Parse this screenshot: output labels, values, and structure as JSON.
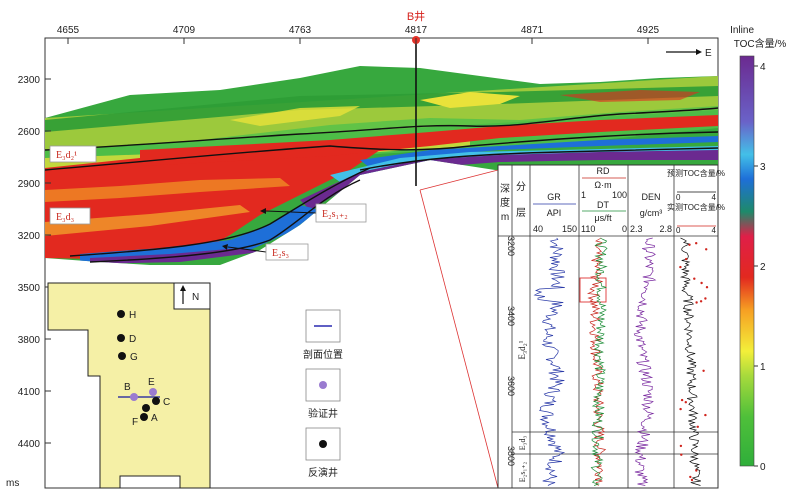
{
  "chart_data": {
    "type": "heatmap",
    "well_name": "B井",
    "inline_label": "Inline",
    "inline_ticks": [
      4655,
      4709,
      4763,
      4817,
      4871,
      4925
    ],
    "time_unit": "ms",
    "time_ticks": [
      2300,
      2600,
      2900,
      3200,
      3500,
      3800,
      4100,
      4400
    ],
    "east_label": "E",
    "colorbar": {
      "title": "TOC含量/%",
      "ticks": [
        0,
        1,
        2,
        3,
        4
      ],
      "colors": [
        "#2fae3a",
        "#62c83f",
        "#f3ef3a",
        "#f6a023",
        "#e2291f",
        "#e01f48",
        "#1e6fd8",
        "#43c0e8",
        "#6f2ea6",
        "#6b2a90"
      ]
    },
    "layer_labels": [
      {
        "id": "ed2-1",
        "text": "E₃d₂¹"
      },
      {
        "id": "ed3",
        "text": "E₃d₃"
      },
      {
        "id": "es12",
        "text": "E₂s₁₊₂"
      },
      {
        "id": "es3",
        "text": "E₂s₃"
      }
    ],
    "map": {
      "north_label": "N",
      "wells": [
        {
          "name": "H",
          "kind": "inversion"
        },
        {
          "name": "D",
          "kind": "inversion"
        },
        {
          "name": "G",
          "kind": "inversion"
        },
        {
          "name": "B",
          "kind": "validation"
        },
        {
          "name": "E",
          "kind": "validation"
        },
        {
          "name": "C",
          "kind": "inversion"
        },
        {
          "name": "A",
          "kind": "inversion"
        },
        {
          "name": "F",
          "kind": "inversion"
        }
      ]
    },
    "legend": [
      {
        "id": "section",
        "label": "剖面位置"
      },
      {
        "id": "verify",
        "label": "验证井"
      },
      {
        "id": "inverse",
        "label": "反演井"
      }
    ],
    "log_panel": {
      "depth_header": [
        "深",
        "度",
        "m"
      ],
      "strata_header": [
        "分",
        "层"
      ],
      "depth_ticks": [
        3200,
        3400,
        3600,
        3800
      ],
      "strata": [
        "E₃d₂¹",
        "E₃d₃",
        "E₂s₁₊₂"
      ],
      "tracks": [
        {
          "name": "GR",
          "unit": "API",
          "min": "40",
          "max": "150",
          "color": "#2a3aa8"
        },
        {
          "name": "RD",
          "unit": "Ω·m",
          "min": "1",
          "max": "100",
          "color": "#c8281e"
        },
        {
          "name": "DT",
          "unit": "μs/ft",
          "min": "110",
          "max": "0",
          "color": "#1f8f3a"
        },
        {
          "name": "DEN",
          "unit": "g/cm³",
          "min": "2.3",
          "max": "2.8",
          "color": "#7a2aa0"
        },
        {
          "name": "预测TOC含量/%",
          "unit": "",
          "min": "0",
          "max": "4",
          "color": "#111111"
        },
        {
          "name": "实测TOC含量/%",
          "unit": "",
          "min": "0",
          "max": "4",
          "color": "#d0251e"
        }
      ]
    }
  }
}
